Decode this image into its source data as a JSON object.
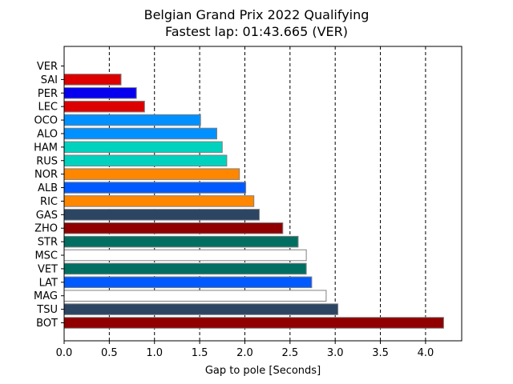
{
  "chart_data": {
    "type": "bar",
    "orientation": "horizontal",
    "title": "Belgian Grand Prix 2022 Qualifying",
    "subtitle": "Fastest lap: 01:43.665 (VER)",
    "xlabel": "Gap to pole [Seconds]",
    "ylabel": "",
    "xlim": [
      0,
      4.4
    ],
    "xticks": [
      "0.0",
      "0.5",
      "1.0",
      "1.5",
      "2.0",
      "2.5",
      "3.0",
      "3.5",
      "4.0"
    ],
    "grid": "vertical-dashed",
    "categories": [
      "VER",
      "SAI",
      "PER",
      "LEC",
      "OCO",
      "ALO",
      "HAM",
      "RUS",
      "NOR",
      "ALB",
      "RIC",
      "GAS",
      "ZHO",
      "STR",
      "MSC",
      "VET",
      "LAT",
      "MAG",
      "TSU",
      "BOT"
    ],
    "values": [
      0.0,
      0.63,
      0.8,
      0.89,
      1.51,
      1.69,
      1.75,
      1.8,
      1.94,
      2.01,
      2.1,
      2.16,
      2.42,
      2.59,
      2.68,
      2.68,
      2.74,
      2.9,
      3.03,
      4.2
    ],
    "colors": [
      "#1e41ff",
      "#dc0000",
      "#0600ef",
      "#dc0000",
      "#0090ff",
      "#0090ff",
      "#00d2be",
      "#00d2be",
      "#ff8700",
      "#005aff",
      "#ff8700",
      "#2b4562",
      "#900000",
      "#006f62",
      "#ffffff",
      "#006f62",
      "#005aff",
      "#ffffff",
      "#2b4562",
      "#900000"
    ]
  }
}
